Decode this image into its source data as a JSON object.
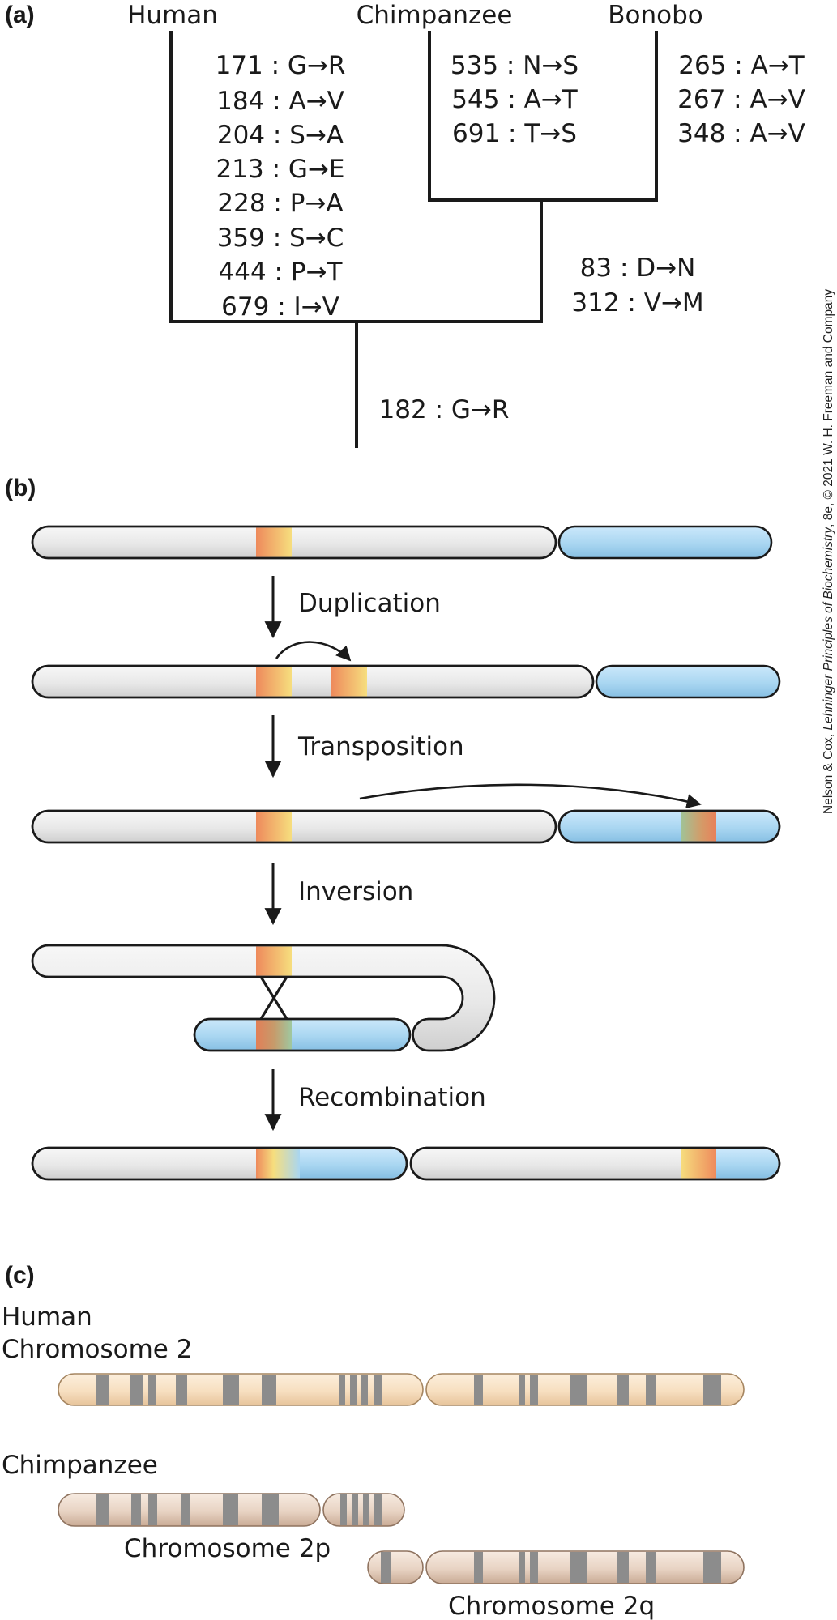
{
  "panels": {
    "a": "(a)",
    "b": "(b)",
    "c": "(c)"
  },
  "tree": {
    "taxa": {
      "human": "Human",
      "chimpanzee": "Chimpanzee",
      "bonobo": "Bonobo"
    },
    "human_mutations": [
      "171 : G→R",
      "184 : A→V",
      "204 : S→A",
      "213 : G→E",
      "228 : P→A",
      "359 : S→C",
      "444 : P→T",
      "679 : I→V"
    ],
    "chimpanzee_mutations": [
      "535 : N→S",
      "545 : A→T",
      "691 : T→S"
    ],
    "bonobo_mutations": [
      "265 : A→T",
      "267 : A→V",
      "348 : A→V"
    ],
    "pan_mutations": [
      "83 : D→N",
      "312 : V→M"
    ],
    "root_mutations": [
      "182 : G→R"
    ]
  },
  "steps": {
    "duplication": "Duplication",
    "transposition": "Transposition",
    "inversion": "Inversion",
    "recombination": "Recombination"
  },
  "karyotype": {
    "human_species": "Human",
    "human_chromosome": "Chromosome 2",
    "chimp_species": "Chimpanzee",
    "chimp_2p": "Chromosome 2p",
    "chimp_2q": "Chromosome 2q"
  },
  "credit": {
    "prefix": "Nelson & Cox, ",
    "book": "Lehninger Principles of Biochemistry",
    "suffix": ", 8e, © 2021 W. H. Freeman and Company"
  },
  "colors": {
    "chromosome_grey": "#ececec",
    "chromosome_blue": "#a9d6f1",
    "segment_orange": "#ee8a5c",
    "segment_yellow": "#f6de7e",
    "human_chr_fill": "#f7dfc0",
    "chimp_chr_fill": "#ead4c4",
    "band_grey": "#8c8c8c"
  }
}
